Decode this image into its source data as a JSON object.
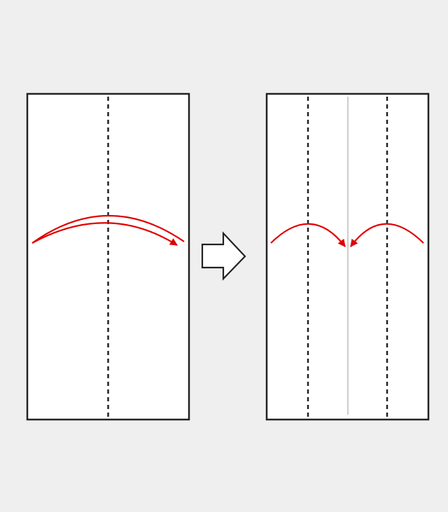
{
  "diagram": {
    "type": "origami-folding-steps",
    "colors": {
      "background": "#efefef",
      "paper": "#ffffff",
      "outline": "#222222",
      "fold_line": "#222222",
      "crease": "#cccccc",
      "arrow": "#e00000",
      "next_arrow_fill": "#ffffff"
    },
    "steps": [
      {
        "id": "step-1",
        "description_visible": false,
        "fold_lines": [
          "center-valley-fold"
        ],
        "arrows": [
          "fold-left-to-right"
        ]
      },
      {
        "id": "step-2",
        "description_visible": false,
        "fold_lines": [
          "left-quarter-valley-fold",
          "right-quarter-valley-fold"
        ],
        "creases": [
          "center-crease"
        ],
        "arrows": [
          "fold-left-edge-to-center",
          "fold-right-edge-to-center"
        ]
      }
    ],
    "transition_icon": "right-arrow-icon"
  }
}
